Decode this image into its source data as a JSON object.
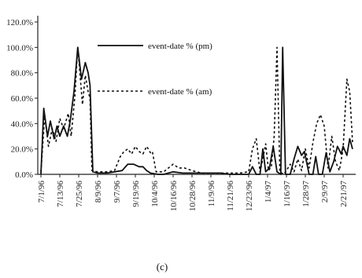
{
  "chart_data": {
    "type": "line",
    "caption": "(c)",
    "ylim": [
      0,
      120
    ],
    "y_ticks": [
      "0.0%",
      "20.0%",
      "40.0%",
      "60.0%",
      "80.0%",
      "100.0%",
      "120.0%"
    ],
    "x_ticks": [
      "7/1/96",
      "7/13/96",
      "7/25/96",
      "8/9/96",
      "9/7/96",
      "9/19/96",
      "10/4/96",
      "10/16/96",
      "10/28/96",
      "11/9/96",
      "11/21/96",
      "12/23/96",
      "1/4/97",
      "1/16/97",
      "1/28/97",
      "2/9/97",
      "2/21/97"
    ],
    "legend_position": "top-center",
    "grid": false,
    "series": [
      {
        "name": "event-date % (pm)",
        "style": "solid",
        "points": [
          [
            0,
            0
          ],
          [
            0.15,
            52
          ],
          [
            0.35,
            30
          ],
          [
            0.5,
            42
          ],
          [
            0.7,
            28
          ],
          [
            0.85,
            38
          ],
          [
            1.0,
            30
          ],
          [
            1.2,
            38
          ],
          [
            1.4,
            30
          ],
          [
            1.55,
            42
          ],
          [
            1.75,
            65
          ],
          [
            1.95,
            100
          ],
          [
            2.15,
            75
          ],
          [
            2.35,
            88
          ],
          [
            2.5,
            80
          ],
          [
            2.6,
            70
          ],
          [
            2.75,
            2
          ],
          [
            3,
            1
          ],
          [
            3.5,
            1
          ],
          [
            3.9,
            2
          ],
          [
            4.3,
            3
          ],
          [
            4.6,
            8
          ],
          [
            4.9,
            8
          ],
          [
            5.2,
            6
          ],
          [
            5.4,
            6
          ],
          [
            5.6,
            3
          ],
          [
            5.8,
            1
          ],
          [
            6.2,
            0
          ],
          [
            6.5,
            0
          ],
          [
            7.0,
            2
          ],
          [
            7.5,
            1
          ],
          [
            8.0,
            1
          ],
          [
            8.5,
            1
          ],
          [
            9.0,
            1
          ],
          [
            9.5,
            1
          ],
          [
            10.0,
            0
          ],
          [
            10.5,
            0
          ],
          [
            11.0,
            0
          ],
          [
            11.2,
            6
          ],
          [
            11.4,
            0
          ],
          [
            11.6,
            0
          ],
          [
            11.75,
            20
          ],
          [
            11.9,
            2
          ],
          [
            12.1,
            5
          ],
          [
            12.3,
            22
          ],
          [
            12.5,
            2
          ],
          [
            12.7,
            0
          ],
          [
            12.8,
            100
          ],
          [
            12.95,
            0
          ],
          [
            13.2,
            0
          ],
          [
            13.4,
            12
          ],
          [
            13.6,
            22
          ],
          [
            13.8,
            15
          ],
          [
            13.95,
            18
          ],
          [
            14.2,
            0
          ],
          [
            14.4,
            0
          ],
          [
            14.55,
            14
          ],
          [
            14.7,
            0
          ],
          [
            14.9,
            0
          ],
          [
            15.1,
            17
          ],
          [
            15.3,
            2
          ],
          [
            15.5,
            10
          ],
          [
            15.7,
            22
          ],
          [
            15.9,
            16
          ],
          [
            16.0,
            22
          ],
          [
            16.2,
            15
          ],
          [
            16.35,
            28
          ],
          [
            16.5,
            20
          ]
        ]
      },
      {
        "name": "event-date % (am)",
        "style": "dotted",
        "points": [
          [
            0,
            2
          ],
          [
            0.2,
            46
          ],
          [
            0.4,
            22
          ],
          [
            0.6,
            36
          ],
          [
            0.8,
            26
          ],
          [
            1.0,
            44
          ],
          [
            1.2,
            36
          ],
          [
            1.45,
            48
          ],
          [
            1.6,
            30
          ],
          [
            1.8,
            62
          ],
          [
            1.95,
            100
          ],
          [
            2.2,
            55
          ],
          [
            2.35,
            78
          ],
          [
            2.5,
            65
          ],
          [
            2.6,
            60
          ],
          [
            2.7,
            3
          ],
          [
            3,
            2
          ],
          [
            3.5,
            2
          ],
          [
            3.9,
            3
          ],
          [
            4.2,
            14
          ],
          [
            4.4,
            18
          ],
          [
            4.6,
            20
          ],
          [
            4.8,
            16
          ],
          [
            5.0,
            22
          ],
          [
            5.2,
            18
          ],
          [
            5.4,
            16
          ],
          [
            5.6,
            22
          ],
          [
            5.8,
            17
          ],
          [
            5.9,
            18
          ],
          [
            6.1,
            2
          ],
          [
            6.5,
            2
          ],
          [
            7.0,
            8
          ],
          [
            7.3,
            5
          ],
          [
            7.6,
            5
          ],
          [
            8.0,
            3
          ],
          [
            8.5,
            1
          ],
          [
            9.0,
            1
          ],
          [
            9.5,
            1
          ],
          [
            10.0,
            1
          ],
          [
            10.5,
            1
          ],
          [
            11.0,
            2
          ],
          [
            11.2,
            20
          ],
          [
            11.4,
            28
          ],
          [
            11.6,
            2
          ],
          [
            11.75,
            12
          ],
          [
            11.9,
            24
          ],
          [
            12.05,
            3
          ],
          [
            12.2,
            6
          ],
          [
            12.35,
            30
          ],
          [
            12.5,
            100
          ],
          [
            12.65,
            2
          ],
          [
            12.85,
            0
          ],
          [
            13.0,
            3
          ],
          [
            13.2,
            8
          ],
          [
            13.4,
            2
          ],
          [
            13.6,
            12
          ],
          [
            13.8,
            3
          ],
          [
            14.0,
            20
          ],
          [
            14.2,
            5
          ],
          [
            14.4,
            25
          ],
          [
            14.6,
            40
          ],
          [
            14.8,
            47
          ],
          [
            15.0,
            38
          ],
          [
            15.2,
            5
          ],
          [
            15.4,
            30
          ],
          [
            15.6,
            10
          ],
          [
            15.8,
            3
          ],
          [
            16.0,
            20
          ],
          [
            16.2,
            75
          ],
          [
            16.35,
            65
          ],
          [
            16.5,
            25
          ]
        ]
      }
    ]
  }
}
